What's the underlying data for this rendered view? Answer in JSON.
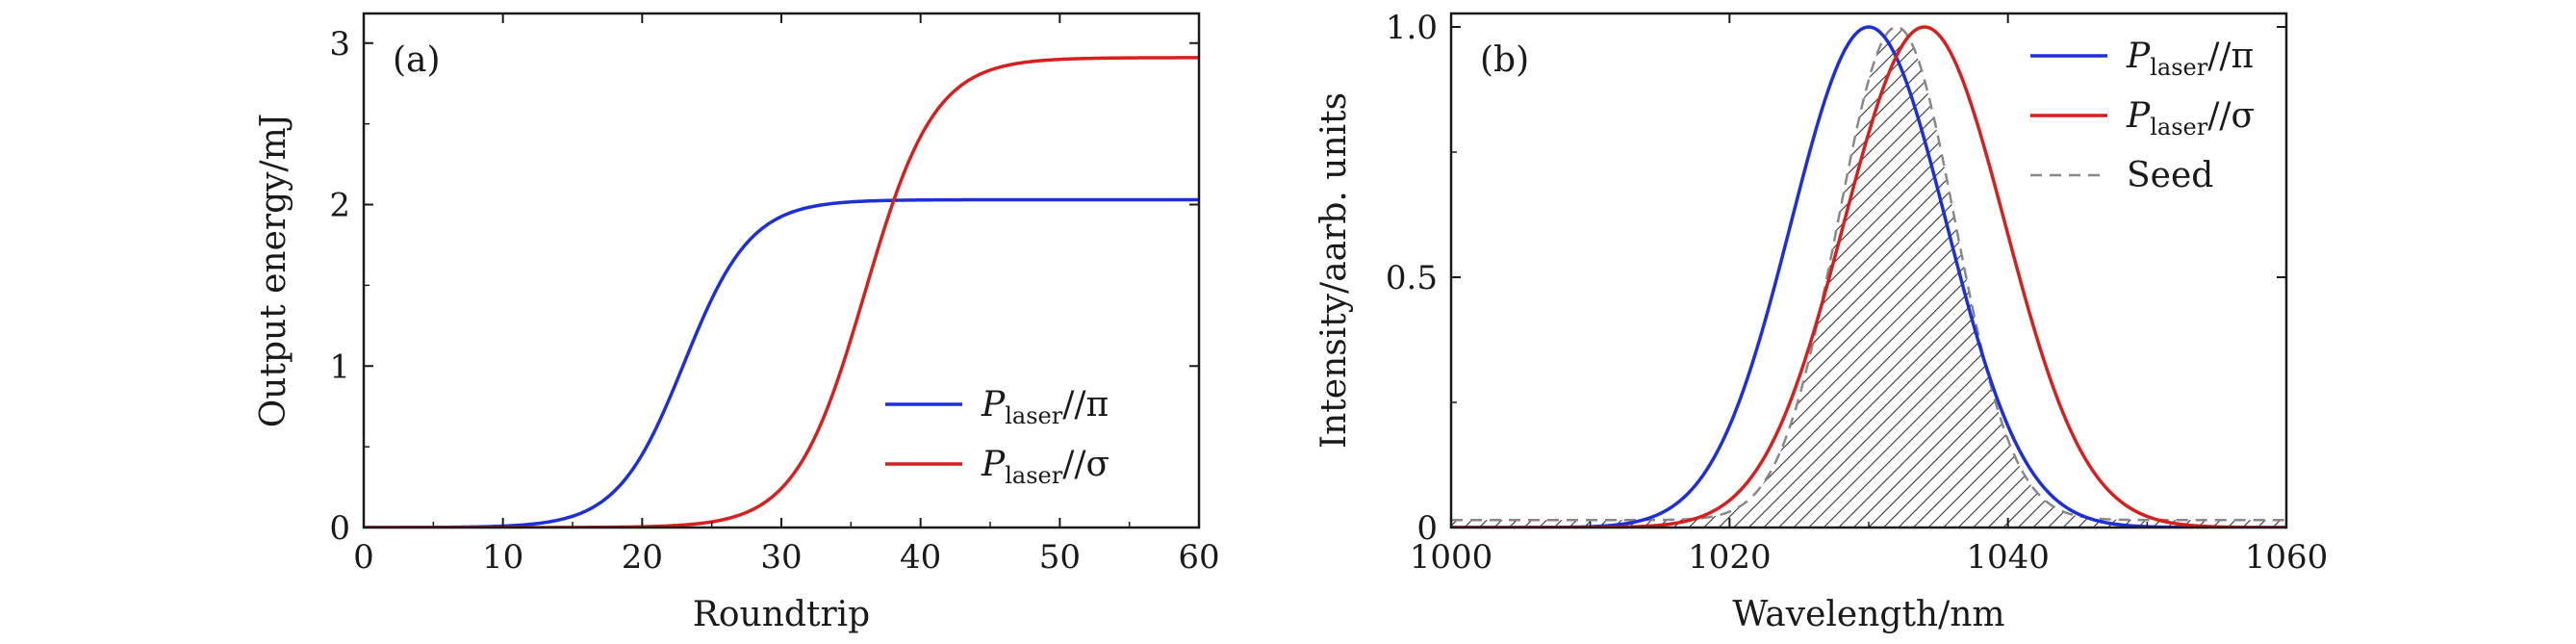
{
  "chart_data": [
    {
      "type": "line",
      "panel_label": "(a)",
      "xlabel": "Roundtrip",
      "ylabel": "Output energy/mJ",
      "xlim": [
        0,
        60
      ],
      "ylim": [
        0,
        3.1
      ],
      "xticks": [
        0,
        10,
        20,
        30,
        40,
        50,
        60
      ],
      "yticks": [
        0,
        1,
        2,
        3
      ],
      "xtick_labels": [
        "0",
        "10",
        "20",
        "30",
        "40",
        "50",
        "60"
      ],
      "ytick_labels": [
        "0",
        "1",
        "2",
        "3"
      ],
      "legend_position": "lower-right",
      "series": [
        {
          "name": "P_laser//π",
          "legend_main": "P",
          "legend_sub": "laser",
          "legend_rest": "//π",
          "color": "#1f2fd6",
          "model": "logistic",
          "amplitude": 2.03,
          "midpoint": 23.0,
          "width": 2.4
        },
        {
          "name": "P_laser//σ",
          "legend_main": "P",
          "legend_sub": "laser",
          "legend_rest": "//σ",
          "color": "#d61f1f",
          "model": "logistic",
          "amplitude": 2.91,
          "midpoint": 36.0,
          "width": 2.5
        }
      ]
    },
    {
      "type": "line",
      "panel_label": "(b)",
      "xlabel": "Wavelength/nm",
      "ylabel": "Intensity/aarb. units",
      "xlim": [
        1000,
        1060
      ],
      "ylim": [
        0,
        1.0
      ],
      "xticks": [
        1000,
        1020,
        1040,
        1060
      ],
      "yticks": [
        0,
        0.5,
        1.0
      ],
      "xtick_labels": [
        "1000",
        "1020",
        "1040",
        "1060"
      ],
      "ytick_labels": [
        "0",
        "0.5",
        "1.0"
      ],
      "legend_position": "top-right",
      "series": [
        {
          "name": "P_laser//π",
          "legend_main": "P",
          "legend_sub": "laser",
          "legend_rest": "//π",
          "color": "#1f2fd6",
          "model": "gaussian",
          "peak_wavelength": 1030.0,
          "sigma": 5.6,
          "baseline": 0.0
        },
        {
          "name": "P_laser//σ",
          "legend_main": "P",
          "legend_sub": "laser",
          "legend_rest": "//σ",
          "color": "#d61f1f",
          "model": "gaussian",
          "peak_wavelength": 1034.0,
          "sigma": 5.8,
          "baseline": 0.0
        },
        {
          "name": "Seed",
          "legend_main": "Seed",
          "legend_sub": "",
          "legend_rest": "",
          "color": "#888888",
          "dashed": true,
          "hatched_fill": true,
          "model": "gaussian",
          "peak_wavelength": 1032.0,
          "sigma": 4.2,
          "baseline": 0.015
        }
      ]
    }
  ]
}
